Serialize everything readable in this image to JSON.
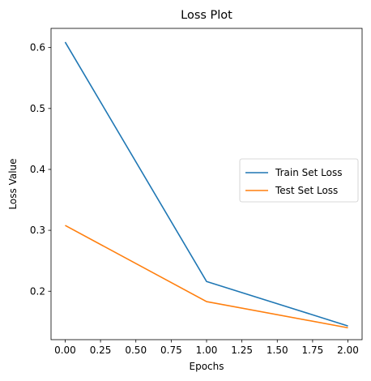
{
  "chart_data": {
    "type": "line",
    "title": "Loss Plot",
    "xlabel": "Epochs",
    "ylabel": "Loss Value",
    "x": [
      0,
      1,
      2
    ],
    "series": [
      {
        "name": "Train Set Loss",
        "values": [
          0.609,
          0.216,
          0.143
        ],
        "color": "#1f77b4"
      },
      {
        "name": "Test Set Loss",
        "values": [
          0.308,
          0.183,
          0.14
        ],
        "color": "#ff7f0e"
      }
    ],
    "xlim": [
      -0.1,
      2.1
    ],
    "ylim": [
      0.1205,
      0.6315
    ],
    "xticks": [
      0,
      0.25,
      0.5,
      0.75,
      1,
      1.25,
      1.5,
      1.75,
      2
    ],
    "xtick_labels": [
      "0.00",
      "0.25",
      "0.50",
      "0.75",
      "1.00",
      "1.25",
      "1.50",
      "1.75",
      "2.00"
    ],
    "yticks": [
      0.2,
      0.3,
      0.4,
      0.5,
      0.6
    ],
    "ytick_labels": [
      "0.2",
      "0.3",
      "0.4",
      "0.5",
      "0.6"
    ],
    "grid": false,
    "legend_position": "center-right"
  }
}
